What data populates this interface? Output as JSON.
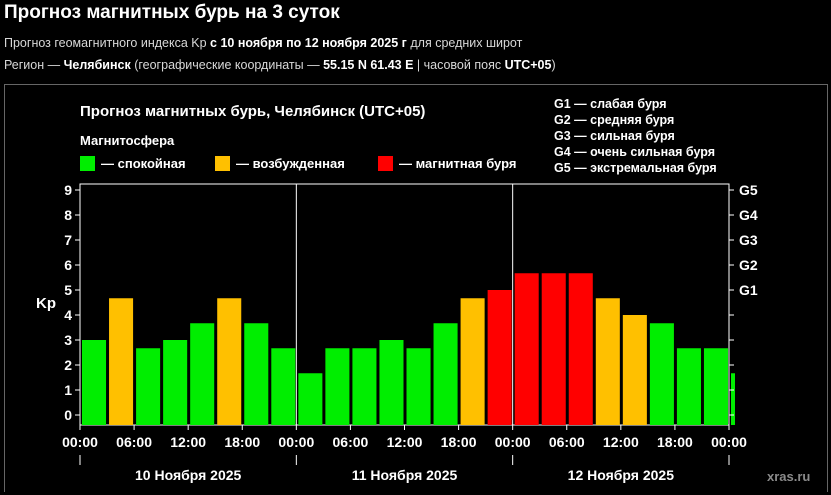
{
  "header": {
    "title": "Прогноз магнитных бурь на 3 суток",
    "line1_prefix": "Прогноз геомагнитного индекса Kp ",
    "line1_bold": "с 10 ноября по 12 ноября 2025 г",
    "line1_suffix": " для средних широт",
    "line2_prefix": "Регион — ",
    "line2_city": "Челябинск",
    "line2_mid": " (географические координаты — ",
    "line2_coords": "55.15 N 61.43 E",
    "line2_tz_prefix": " | часовой пояс ",
    "line2_tz": "UTC+05",
    "line2_suffix": ")"
  },
  "colors": {
    "calm": "#00ee00",
    "excited": "#ffc000",
    "storm": "#ff0000",
    "background": "#000000",
    "grid": "#ffffff"
  },
  "legend": {
    "title": "Магнитосфера",
    "items": [
      {
        "key": "calm",
        "label": "— спокойная"
      },
      {
        "key": "excited",
        "label": "— возбужденная"
      },
      {
        "key": "storm",
        "label": "— магнитная буря"
      }
    ],
    "g_scale": [
      "G1 — слабая буря",
      "G2 — средняя буря",
      "G3 — сильная буря",
      "G4 — очень сильная буря",
      "G5 — экстремальная буря"
    ]
  },
  "watermark": "xras.ru",
  "chart_data": {
    "type": "bar",
    "title": "Прогноз магнитных бурь, Челябинск (UTC+05)",
    "ylabel": "Kp",
    "ylim": [
      0,
      9
    ],
    "yticks": [
      "0",
      "1",
      "2",
      "3",
      "4",
      "5",
      "6",
      "7",
      "8",
      "9"
    ],
    "g_ticks": [
      {
        "label": "G1",
        "kp": 5
      },
      {
        "label": "G2",
        "kp": 6
      },
      {
        "label": "G3",
        "kp": 7
      },
      {
        "label": "G4",
        "kp": 8
      },
      {
        "label": "G5",
        "kp": 9
      }
    ],
    "xtick_labels": [
      "00:00",
      "06:00",
      "12:00",
      "18:00",
      "00:00",
      "06:00",
      "12:00",
      "18:00",
      "00:00",
      "06:00",
      "12:00",
      "18:00",
      "00:00"
    ],
    "days": [
      "10 Ноября 2025",
      "11 Ноября 2025",
      "12 Ноября 2025"
    ],
    "values": [
      3.0,
      4.67,
      2.67,
      3.0,
      3.67,
      4.67,
      3.67,
      2.67,
      1.67,
      2.67,
      2.67,
      3.0,
      2.67,
      3.67,
      4.67,
      5.0,
      5.67,
      5.67,
      5.67,
      4.67,
      4.0,
      3.67,
      2.67,
      2.67,
      1.67
    ],
    "levels": [
      "calm",
      "excited",
      "calm",
      "calm",
      "calm",
      "excited",
      "calm",
      "calm",
      "calm",
      "calm",
      "calm",
      "calm",
      "calm",
      "calm",
      "excited",
      "storm",
      "storm",
      "storm",
      "storm",
      "excited",
      "excited",
      "calm",
      "calm",
      "calm",
      "calm"
    ]
  }
}
